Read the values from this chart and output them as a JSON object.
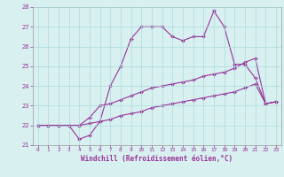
{
  "xlabel": "Windchill (Refroidissement éolien,°C)",
  "x": [
    0,
    1,
    2,
    3,
    4,
    5,
    6,
    7,
    8,
    9,
    10,
    11,
    12,
    13,
    14,
    15,
    16,
    17,
    18,
    19,
    20,
    21,
    22,
    23
  ],
  "line1": [
    22.0,
    22.0,
    22.0,
    22.0,
    21.3,
    21.5,
    22.2,
    24.0,
    25.0,
    26.4,
    27.0,
    27.0,
    27.0,
    26.5,
    26.3,
    26.5,
    26.5,
    27.8,
    27.0,
    25.1,
    25.1,
    24.4,
    23.1,
    23.2
  ],
  "line2": [
    22.0,
    22.0,
    22.0,
    22.0,
    22.0,
    22.4,
    23.0,
    23.1,
    23.3,
    23.5,
    23.7,
    23.9,
    24.0,
    24.1,
    24.2,
    24.3,
    24.5,
    24.6,
    24.7,
    24.9,
    25.2,
    25.4,
    23.1,
    23.2
  ],
  "line3": [
    22.0,
    22.0,
    22.0,
    22.0,
    22.0,
    22.1,
    22.2,
    22.3,
    22.5,
    22.6,
    22.7,
    22.9,
    23.0,
    23.1,
    23.2,
    23.3,
    23.4,
    23.5,
    23.6,
    23.7,
    23.9,
    24.1,
    23.1,
    23.2
  ],
  "line_color": "#993399",
  "bg_color": "#d8f0f0",
  "grid_color": "#aadddd",
  "ylim": [
    21,
    28
  ],
  "yticks": [
    21,
    22,
    23,
    24,
    25,
    26,
    27,
    28
  ],
  "xticks": [
    0,
    1,
    2,
    3,
    4,
    5,
    6,
    7,
    8,
    9,
    10,
    11,
    12,
    13,
    14,
    15,
    16,
    17,
    18,
    19,
    20,
    21,
    22,
    23
  ]
}
